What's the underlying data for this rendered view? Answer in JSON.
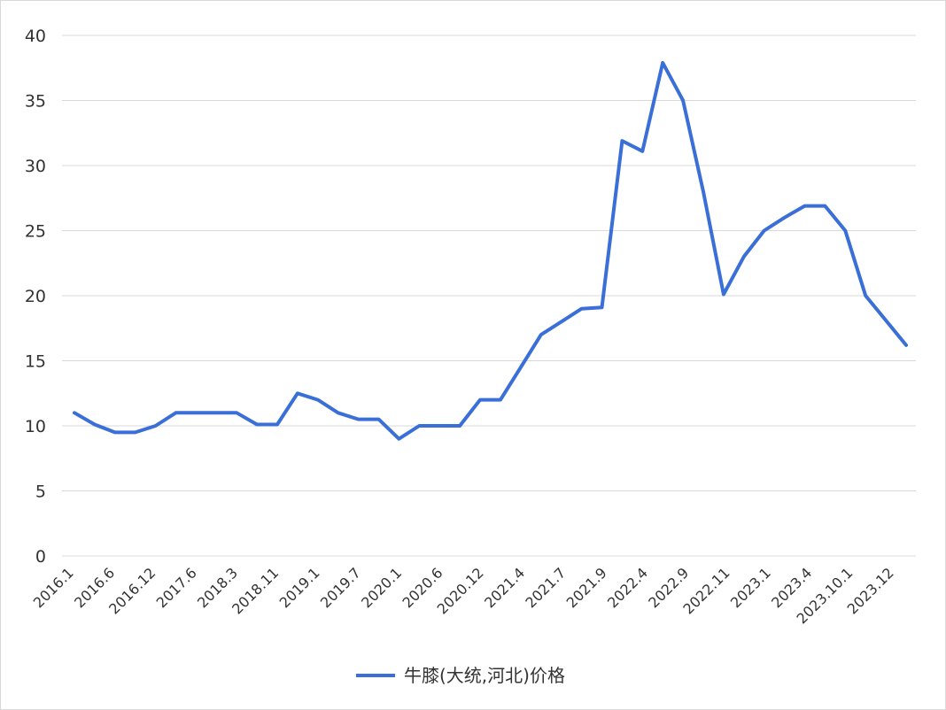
{
  "chart_data": {
    "type": "line",
    "title": "",
    "xlabel": "",
    "ylabel": "",
    "ylim": [
      0,
      40
    ],
    "grid": true,
    "legend_placement": "bottom-center",
    "y_ticks": [
      0,
      5,
      10,
      15,
      20,
      25,
      30,
      35,
      40
    ],
    "x_tick_labels": [
      "2016.1",
      "2016.6",
      "2016.12",
      "2017.6",
      "2018.3",
      "2018.11",
      "2019.1",
      "2019.7",
      "2020.1",
      "2020.6",
      "2020.12",
      "2021.4",
      "2021.7",
      "2021.9",
      "2022.4",
      "2022.9",
      "2022.11",
      "2023.1",
      "2023.4",
      "2023.10.1",
      "2023.12"
    ],
    "colors": {
      "series": "#3a6fd8"
    },
    "series": [
      {
        "name": "牛膝(大统,河北)价格",
        "values": [
          11,
          10.1,
          9.5,
          9.5,
          10,
          11,
          11,
          11,
          11,
          10.1,
          10.1,
          12.5,
          12,
          11,
          10.5,
          10.5,
          9,
          10,
          10,
          10,
          12,
          12,
          14.5,
          17,
          18,
          19,
          19.1,
          31.9,
          31.1,
          37.9,
          35,
          28,
          20.1,
          23,
          25,
          26,
          26.9,
          26.9,
          25,
          20,
          18.1,
          16.2
        ]
      }
    ]
  }
}
